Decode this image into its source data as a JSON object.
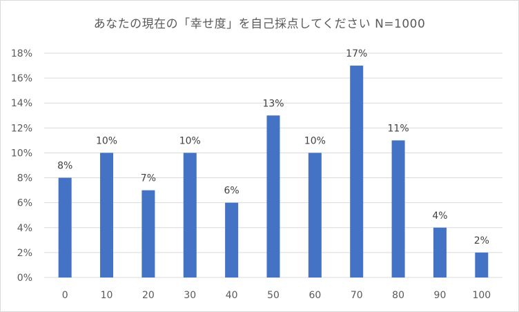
{
  "chart_data": {
    "type": "bar",
    "title": "あなたの現在の「幸せ度」を自己採点してください N=1000",
    "categories": [
      "0",
      "10",
      "20",
      "30",
      "40",
      "50",
      "60",
      "70",
      "80",
      "90",
      "100"
    ],
    "series": [
      {
        "values": [
          8,
          10,
          7,
          10,
          6,
          13,
          10,
          17,
          11,
          4,
          2
        ]
      }
    ],
    "data_labels": [
      "8%",
      "10%",
      "7%",
      "10%",
      "6%",
      "13%",
      "10%",
      "17%",
      "11%",
      "4%",
      "2%"
    ],
    "y_tick_labels": [
      "0%",
      "2%",
      "4%",
      "6%",
      "8%",
      "10%",
      "12%",
      "14%",
      "16%",
      "18%"
    ],
    "ylim": [
      0,
      18
    ],
    "xlabel": "",
    "ylabel": "",
    "grid": true,
    "legend": "none",
    "colors": {
      "bar": "#4472c4",
      "grid": "#d9d9d9",
      "text": "#595959"
    }
  }
}
